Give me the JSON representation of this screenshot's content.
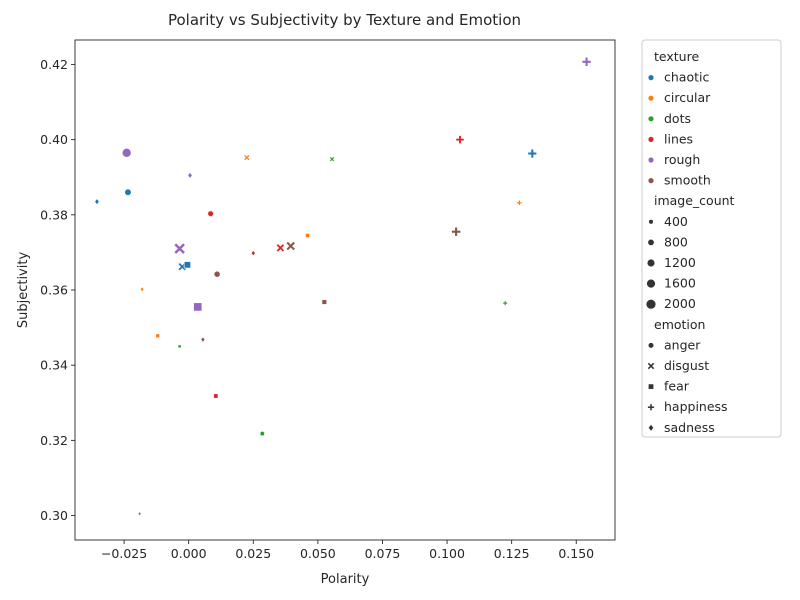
{
  "chart_data": {
    "type": "scatter",
    "title": "Polarity vs Subjectivity by Texture and Emotion",
    "xlabel": "Polarity",
    "ylabel": "Subjectivity",
    "xlim": [
      -0.044,
      0.165
    ],
    "ylim": [
      0.2935,
      0.4265
    ],
    "xticks": [
      -0.025,
      0.0,
      0.025,
      0.05,
      0.075,
      0.1,
      0.125,
      0.15
    ],
    "xtick_labels": [
      "−0.025",
      "0.000",
      "0.025",
      "0.050",
      "0.075",
      "0.100",
      "0.125",
      "0.150"
    ],
    "yticks": [
      0.3,
      0.32,
      0.34,
      0.36,
      0.38,
      0.4,
      0.42
    ],
    "ytick_labels": [
      "0.30",
      "0.32",
      "0.34",
      "0.36",
      "0.38",
      "0.40",
      "0.42"
    ],
    "grid": false,
    "legend_position": "outside-right",
    "legend": {
      "hue_title": "texture",
      "hue": [
        {
          "label": "chaotic",
          "color": "#1f77b4"
        },
        {
          "label": "circular",
          "color": "#ff7f0e"
        },
        {
          "label": "dots",
          "color": "#2ca02c"
        },
        {
          "label": "lines",
          "color": "#d62728"
        },
        {
          "label": "rough",
          "color": "#9467bd"
        },
        {
          "label": "smooth",
          "color": "#8c564b"
        }
      ],
      "size_title": "image_count",
      "sizes": [
        400,
        800,
        1200,
        1600,
        2000
      ],
      "size_labels": [
        "400",
        "800",
        "1200",
        "1600",
        "2000"
      ],
      "style_title": "emotion",
      "styles": [
        {
          "label": "anger",
          "marker": "circle"
        },
        {
          "label": "disgust",
          "marker": "x"
        },
        {
          "label": "fear",
          "marker": "square"
        },
        {
          "label": "happiness",
          "marker": "plus"
        },
        {
          "label": "sadness",
          "marker": "diamond"
        }
      ]
    },
    "points": [
      {
        "texture": "chaotic",
        "emotion": "anger",
        "x": -0.0235,
        "y": 0.386,
        "count": 1000
      },
      {
        "texture": "chaotic",
        "emotion": "disgust",
        "x": -0.0025,
        "y": 0.3662,
        "count": 1000
      },
      {
        "texture": "chaotic",
        "emotion": "fear",
        "x": -0.0005,
        "y": 0.3667,
        "count": 1100
      },
      {
        "texture": "chaotic",
        "emotion": "happiness",
        "x": 0.133,
        "y": 0.3963,
        "count": 1300
      },
      {
        "texture": "chaotic",
        "emotion": "sadness",
        "x": -0.0355,
        "y": 0.3835,
        "count": 500
      },
      {
        "texture": "circular",
        "emotion": "anger",
        "x": 0.046,
        "y": 0.3745,
        "count": 500
      },
      {
        "texture": "circular",
        "emotion": "disgust",
        "x": 0.0225,
        "y": 0.3952,
        "count": 500
      },
      {
        "texture": "circular",
        "emotion": "fear",
        "x": -0.012,
        "y": 0.3478,
        "count": 400
      },
      {
        "texture": "circular",
        "emotion": "happiness",
        "x": 0.128,
        "y": 0.3832,
        "count": 400
      },
      {
        "texture": "circular",
        "emotion": "sadness",
        "x": -0.018,
        "y": 0.3602,
        "count": 300
      },
      {
        "texture": "dots",
        "emotion": "anger",
        "x": 0.0285,
        "y": 0.3218,
        "count": 500
      },
      {
        "texture": "dots",
        "emotion": "disgust",
        "x": 0.0555,
        "y": 0.3948,
        "count": 300
      },
      {
        "texture": "dots",
        "emotion": "fear",
        "x": -0.0035,
        "y": 0.345,
        "count": 250
      },
      {
        "texture": "dots",
        "emotion": "happiness",
        "x": 0.1225,
        "y": 0.3565,
        "count": 300
      },
      {
        "texture": "dots",
        "emotion": "sadness",
        "x": -0.019,
        "y": 0.3005,
        "count": 200
      },
      {
        "texture": "lines",
        "emotion": "anger",
        "x": 0.0085,
        "y": 0.3803,
        "count": 800
      },
      {
        "texture": "lines",
        "emotion": "disgust",
        "x": 0.0355,
        "y": 0.3712,
        "count": 1000
      },
      {
        "texture": "lines",
        "emotion": "fear",
        "x": 0.0105,
        "y": 0.3318,
        "count": 500
      },
      {
        "texture": "lines",
        "emotion": "happiness",
        "x": 0.105,
        "y": 0.4,
        "count": 1100
      },
      {
        "texture": "lines",
        "emotion": "sadness",
        "x": 0.025,
        "y": 0.3698,
        "count": 400
      },
      {
        "texture": "rough",
        "emotion": "anger",
        "x": -0.024,
        "y": 0.3965,
        "count": 1900
      },
      {
        "texture": "rough",
        "emotion": "disgust",
        "x": -0.0035,
        "y": 0.371,
        "count": 2000
      },
      {
        "texture": "rough",
        "emotion": "fear",
        "x": 0.0035,
        "y": 0.3555,
        "count": 1800
      },
      {
        "texture": "rough",
        "emotion": "happiness",
        "x": 0.154,
        "y": 0.4207,
        "count": 1400
      },
      {
        "texture": "rough",
        "emotion": "sadness",
        "x": 0.0005,
        "y": 0.3905,
        "count": 500
      },
      {
        "texture": "smooth",
        "emotion": "anger",
        "x": 0.011,
        "y": 0.3642,
        "count": 900
      },
      {
        "texture": "smooth",
        "emotion": "disgust",
        "x": 0.0395,
        "y": 0.3717,
        "count": 1300
      },
      {
        "texture": "smooth",
        "emotion": "fear",
        "x": 0.0525,
        "y": 0.3568,
        "count": 600
      },
      {
        "texture": "smooth",
        "emotion": "happiness",
        "x": 0.1035,
        "y": 0.3755,
        "count": 1400
      },
      {
        "texture": "smooth",
        "emotion": "sadness",
        "x": 0.0055,
        "y": 0.3468,
        "count": 400
      }
    ]
  }
}
